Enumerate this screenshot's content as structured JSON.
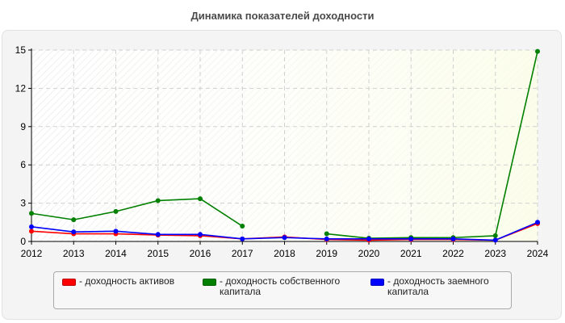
{
  "chart_data": {
    "type": "line",
    "title": "Динамика показателей доходности",
    "x": [
      "2012",
      "2013",
      "2014",
      "2015",
      "2016",
      "2017",
      "2018",
      "2019",
      "2020",
      "2021",
      "2022",
      "2023",
      "2024"
    ],
    "y_ticks": [
      0,
      3,
      6,
      9,
      12,
      15
    ],
    "ylim": [
      0,
      15
    ],
    "grid": true,
    "legend_position": "bottom",
    "series": [
      {
        "name": "- доходность активов",
        "color": "#ff0000",
        "values": [
          0.8,
          0.6,
          0.6,
          0.5,
          0.45,
          0.2,
          0.35,
          0.15,
          0.1,
          0.15,
          0.15,
          0.1,
          1.4
        ]
      },
      {
        "name": "- доходность собственного капитала",
        "color": "#008000",
        "values": [
          2.2,
          1.7,
          2.35,
          3.2,
          3.35,
          1.2,
          null,
          0.6,
          0.25,
          0.3,
          0.3,
          0.45,
          14.9
        ]
      },
      {
        "name": "- доходность заемного капитала",
        "color": "#0000ff",
        "values": [
          1.15,
          0.75,
          0.8,
          0.55,
          0.55,
          0.2,
          0.3,
          0.2,
          0.2,
          0.2,
          0.2,
          0.1,
          1.5
        ]
      }
    ],
    "legend": [
      {
        "line1": "- доходность активов",
        "line2": ""
      },
      {
        "line1": "- доходность собственного",
        "line2": "капитала"
      },
      {
        "line1": "- доходность заемного",
        "line2": "капитала"
      }
    ]
  }
}
